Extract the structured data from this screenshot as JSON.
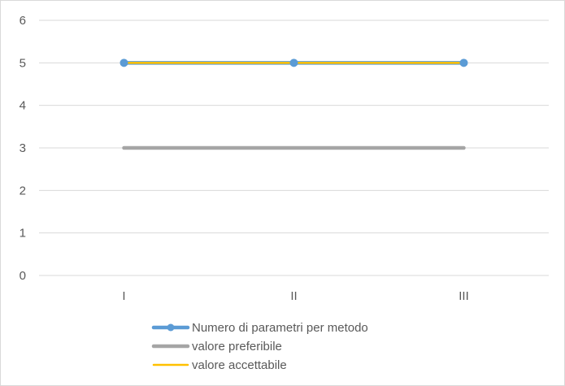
{
  "chart_data": {
    "type": "line",
    "categories": [
      "I",
      "II",
      "III"
    ],
    "y_ticks": [
      "0",
      "1",
      "2",
      "3",
      "4",
      "5",
      "6"
    ],
    "ylim": [
      0,
      6
    ],
    "grid": true,
    "legend_position": "bottom",
    "series": [
      {
        "name": "Numero di parametri per metodo",
        "values": [
          5,
          5,
          5
        ],
        "color": "#5b9bd5",
        "markers": true
      },
      {
        "name": "valore preferibile",
        "values": [
          3,
          3,
          3
        ],
        "color": "#a5a5a5",
        "markers": false
      },
      {
        "name": "valore accettabile",
        "values": [
          5,
          5,
          5
        ],
        "color": "#ffc000",
        "markers": false
      }
    ]
  }
}
